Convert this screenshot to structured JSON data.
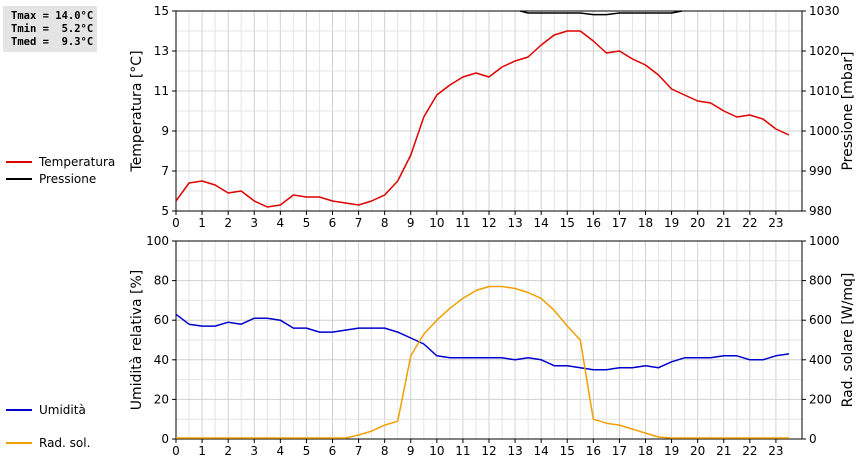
{
  "stats": {
    "tmax": "Tmax = 14.0°C",
    "tmin": "Tmin =  5.2°C",
    "tmed": "Tmed =  9.3°C"
  },
  "legend_top": [
    {
      "label": "Temperatura",
      "color": "#e00000"
    },
    {
      "label": "Pressione",
      "color": "#000000"
    }
  ],
  "legend_bottom": [
    {
      "label": "Umidità",
      "color": "#0000cc"
    },
    {
      "label": "Rad. sol.",
      "color": "#f0a000"
    }
  ],
  "chart_data": [
    {
      "type": "line",
      "xlabel": "",
      "ylabel": "Temperatura [°C]",
      "y2label": "Pressione [mbar]",
      "xlim": [
        0,
        24
      ],
      "ylim": [
        5,
        15
      ],
      "y2lim": [
        980,
        1030
      ],
      "xticks": [
        0,
        1,
        2,
        3,
        4,
        5,
        6,
        7,
        8,
        9,
        10,
        11,
        12,
        13,
        14,
        15,
        16,
        17,
        18,
        19,
        20,
        21,
        22,
        23
      ],
      "yticks": [
        5,
        7,
        9,
        11,
        13,
        15
      ],
      "y2ticks": [
        980,
        990,
        1000,
        1010,
        1020,
        1030
      ],
      "grid": true,
      "legend_position": "left",
      "series": [
        {
          "name": "Temperatura",
          "axis": "left",
          "color": "#e00000",
          "x": [
            0,
            0.5,
            1,
            1.5,
            2,
            2.5,
            3,
            3.5,
            4,
            4.5,
            5,
            5.5,
            6,
            6.5,
            7,
            7.5,
            8,
            8.5,
            9,
            9.5,
            10,
            10.5,
            11,
            11.5,
            12,
            12.5,
            13,
            13.5,
            14,
            14.5,
            15,
            15.5,
            16,
            16.5,
            17,
            17.5,
            18,
            18.5,
            19,
            19.5,
            20,
            20.5,
            21,
            21.5,
            22,
            22.5,
            23,
            23.5
          ],
          "values": [
            5.5,
            6.4,
            6.5,
            6.3,
            5.9,
            6.0,
            5.5,
            5.2,
            5.3,
            5.8,
            5.7,
            5.7,
            5.5,
            5.4,
            5.3,
            5.5,
            5.8,
            6.5,
            7.8,
            9.7,
            10.8,
            11.3,
            11.7,
            11.9,
            11.7,
            12.2,
            12.5,
            12.7,
            13.3,
            13.8,
            14.0,
            14.0,
            13.5,
            12.9,
            13.0,
            12.6,
            12.3,
            11.8,
            11.1,
            10.8,
            10.5,
            10.4,
            10.0,
            9.7,
            9.8,
            9.6,
            9.1,
            8.8
          ]
        },
        {
          "name": "Pressione",
          "axis": "right",
          "color": "#000000",
          "x": [
            13.2,
            13.5,
            14,
            14.5,
            15,
            15.5,
            16,
            16.5,
            17,
            17.5,
            18,
            18.5,
            19,
            19.4
          ],
          "values": [
            1030,
            1029.5,
            1029.5,
            1029.5,
            1029.5,
            1029.5,
            1029.1,
            1029.1,
            1029.5,
            1029.5,
            1029.5,
            1029.5,
            1029.5,
            1030
          ]
        }
      ]
    },
    {
      "type": "line",
      "xlabel": "",
      "ylabel": "Umidità relativa [%]",
      "y2label": "Rad. solare [W/mq]",
      "xlim": [
        0,
        24
      ],
      "ylim": [
        0,
        100
      ],
      "y2lim": [
        0,
        1000
      ],
      "xticks": [
        0,
        1,
        2,
        3,
        4,
        5,
        6,
        7,
        8,
        9,
        10,
        11,
        12,
        13,
        14,
        15,
        16,
        17,
        18,
        19,
        20,
        21,
        22,
        23
      ],
      "yticks": [
        0,
        20,
        40,
        60,
        80,
        100
      ],
      "y2ticks": [
        0,
        200,
        400,
        600,
        800,
        1000
      ],
      "grid": true,
      "legend_position": "left",
      "series": [
        {
          "name": "Umidità",
          "axis": "left",
          "color": "#0000cc",
          "x": [
            0,
            0.5,
            1,
            1.5,
            2,
            2.5,
            3,
            3.5,
            4,
            4.5,
            5,
            5.5,
            6,
            6.5,
            7,
            7.5,
            8,
            8.5,
            9,
            9.5,
            10,
            10.5,
            11,
            11.5,
            12,
            12.5,
            13,
            13.5,
            14,
            14.5,
            15,
            15.5,
            16,
            16.5,
            17,
            17.5,
            18,
            18.5,
            19,
            19.5,
            20,
            20.5,
            21,
            21.5,
            22,
            22.5,
            23,
            23.5
          ],
          "values": [
            63,
            58,
            57,
            57,
            59,
            58,
            61,
            61,
            60,
            56,
            56,
            54,
            54,
            55,
            56,
            56,
            56,
            54,
            51,
            48,
            42,
            41,
            41,
            41,
            41,
            41,
            40,
            41,
            40,
            37,
            37,
            36,
            35,
            35,
            36,
            36,
            37,
            36,
            39,
            41,
            41,
            41,
            42,
            42,
            40,
            40,
            42,
            43
          ]
        },
        {
          "name": "Rad. sol.",
          "axis": "right",
          "color": "#f0a000",
          "x": [
            0,
            0.5,
            1,
            1.5,
            2,
            2.5,
            3,
            3.5,
            4,
            4.5,
            5,
            5.5,
            6,
            6.5,
            7,
            7.5,
            8,
            8.5,
            9,
            9.5,
            10,
            10.5,
            11,
            11.5,
            12,
            12.5,
            13,
            13.5,
            14,
            14.5,
            15,
            15.5,
            16,
            16.5,
            17,
            17.5,
            18,
            18.5,
            19,
            19.5,
            20,
            20.5,
            21,
            21.5,
            22,
            22.5,
            23,
            23.5
          ],
          "values": [
            5,
            5,
            5,
            5,
            5,
            5,
            5,
            5,
            5,
            5,
            5,
            5,
            5,
            5,
            20,
            40,
            70,
            90,
            420,
            530,
            600,
            660,
            710,
            750,
            770,
            770,
            760,
            740,
            710,
            650,
            570,
            500,
            100,
            80,
            70,
            50,
            30,
            10,
            5,
            5,
            5,
            5,
            5,
            5,
            5,
            5,
            5,
            5
          ]
        }
      ]
    }
  ]
}
